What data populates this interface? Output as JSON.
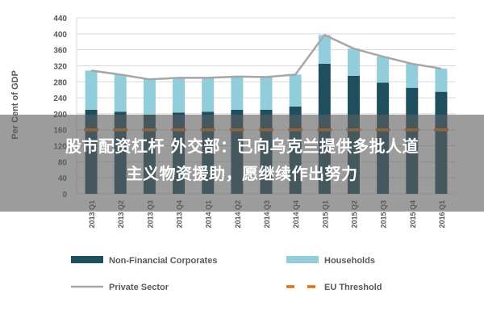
{
  "chart_data": {
    "type": "bar",
    "title": "",
    "xlabel": "",
    "ylabel": "Per Cent of GDP",
    "ylim": [
      0,
      440
    ],
    "yticks": [
      0,
      40,
      80,
      120,
      160,
      200,
      240,
      280,
      320,
      360,
      400,
      440
    ],
    "grid": true,
    "stacked": true,
    "legend_position": "bottom",
    "categories": [
      "2013 Q1",
      "2013 Q2",
      "2013 Q3",
      "2013 Q4",
      "2014 Q1",
      "2014 Q2",
      "2014 Q3",
      "2014 Q4",
      "2015 Q1",
      "2015 Q2",
      "2015 Q3",
      "2015 Q4",
      "2016 Q1"
    ],
    "series": [
      {
        "name": "Non-Financial Corporates",
        "kind": "bar",
        "color": "#1f4e5f",
        "values": [
          210,
          205,
          198,
          203,
          205,
          210,
          210,
          218,
          325,
          295,
          278,
          265,
          255
        ]
      },
      {
        "name": "Households",
        "kind": "bar",
        "color": "#92cddc",
        "values": [
          98,
          93,
          88,
          87,
          85,
          83,
          82,
          80,
          72,
          68,
          65,
          60,
          58
        ]
      },
      {
        "name": "Private Sector",
        "kind": "line",
        "color": "#a6a6a6",
        "values": [
          308,
          298,
          286,
          290,
          290,
          293,
          292,
          298,
          397,
          363,
          343,
          325,
          313
        ]
      },
      {
        "name": "EU Threshold",
        "kind": "dashed-line",
        "color": "#e46c0a",
        "values": [
          160,
          160,
          160,
          160,
          160,
          160,
          160,
          160,
          160,
          160,
          160,
          160,
          160
        ]
      }
    ]
  },
  "overlay": {
    "line1": "股市配资杠杆 外交部：已向乌克兰提供多批人道",
    "line2": "主义物资援助，愿继续作出努力"
  }
}
